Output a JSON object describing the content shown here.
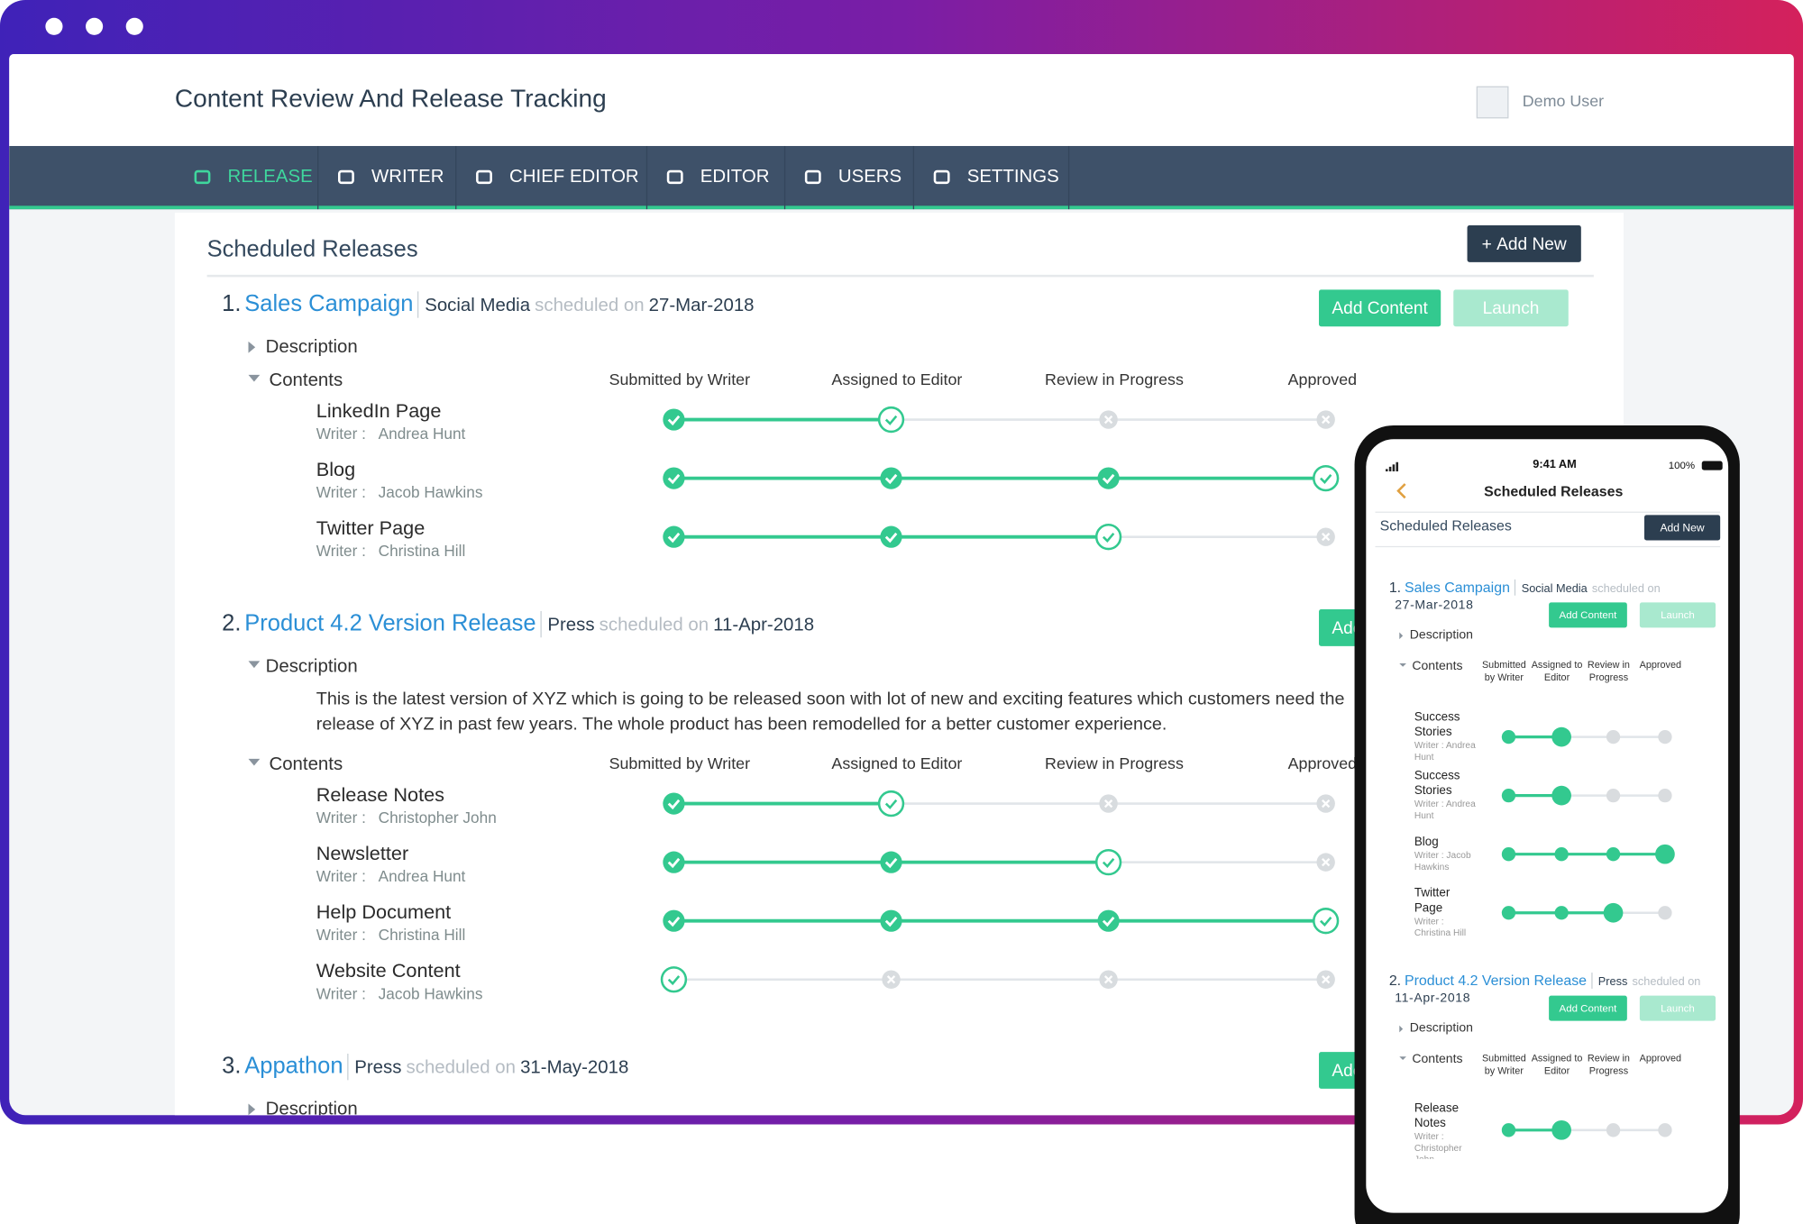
{
  "window": {
    "title": "Content Review And Release Tracking",
    "user": "Demo User"
  },
  "nav": [
    {
      "label": "RELEASE",
      "active": true
    },
    {
      "label": "WRITER",
      "active": false
    },
    {
      "label": "CHIEF EDITOR",
      "active": false
    },
    {
      "label": "EDITOR",
      "active": false
    },
    {
      "label": "USERS",
      "active": false
    },
    {
      "label": "SETTINGS",
      "active": false
    }
  ],
  "page": {
    "title": "Scheduled Releases",
    "add_new": "Add New"
  },
  "labels": {
    "scheduled_on": "scheduled on",
    "add_content": "Add Content",
    "launch": "Launch",
    "description": "Description",
    "contents": "Contents",
    "writer": "Writer :"
  },
  "stages": [
    "Submitted by Writer",
    "Assigned to Editor",
    "Review in Progress",
    "Approved"
  ],
  "releases": [
    {
      "number": "1.",
      "name": "Sales Campaign",
      "channel": "Social Media",
      "date": "27-Mar-2018",
      "description_open": false,
      "items": [
        {
          "name": "LinkedIn Page",
          "writer": "Andrea Hunt",
          "status": [
            "done",
            "current",
            "pending",
            "pending"
          ]
        },
        {
          "name": "Blog",
          "writer": "Jacob Hawkins",
          "status": [
            "done",
            "done",
            "done",
            "current"
          ]
        },
        {
          "name": "Twitter Page",
          "writer": "Christina Hill",
          "status": [
            "done",
            "done",
            "current",
            "pending"
          ]
        }
      ]
    },
    {
      "number": "2.",
      "name": "Product 4.2 Version Release",
      "channel": "Press",
      "date": "11-Apr-2018",
      "description_open": true,
      "description": [
        "This is the latest version of XYZ which is going to be released soon with lot of new and exciting features which customers need the",
        "release of XYZ in past few years. The whole product has been remodelled for a better customer experience."
      ],
      "items": [
        {
          "name": "Release Notes",
          "writer": "Christopher John",
          "status": [
            "done",
            "current",
            "pending",
            "pending"
          ]
        },
        {
          "name": "Newsletter",
          "writer": "Andrea Hunt",
          "status": [
            "done",
            "done",
            "current",
            "pending"
          ]
        },
        {
          "name": "Help Document",
          "writer": "Christina Hill",
          "status": [
            "done",
            "done",
            "done",
            "current"
          ]
        },
        {
          "name": "Website Content",
          "writer": "Jacob Hawkins",
          "status": [
            "current",
            "pending",
            "pending",
            "pending"
          ]
        }
      ]
    },
    {
      "number": "3.",
      "name": "Appathon",
      "channel": "Press",
      "date": "31-May-2018",
      "description_open": false,
      "items": []
    }
  ],
  "mobile": {
    "time": "9:41 AM",
    "battery": "100%",
    "title": "Scheduled Releases",
    "releases": [
      {
        "number": "1.",
        "name": "Sales Campaign",
        "channel": "Social Media",
        "date": "27-Mar-2018",
        "description_open": false,
        "items": [
          {
            "name": "Success Stories",
            "writer": "Andrea Hunt",
            "status": [
              "done",
              "current",
              "pending",
              "pending"
            ]
          },
          {
            "name": "Success Stories",
            "writer": "Andrea Hunt",
            "status": [
              "done",
              "current",
              "pending",
              "pending"
            ]
          },
          {
            "name": "Blog",
            "writer": "Jacob Hawkins",
            "status": [
              "done",
              "done",
              "done",
              "current"
            ]
          },
          {
            "name": "Twitter Page",
            "writer": "Christina Hill",
            "status": [
              "done",
              "done",
              "current",
              "pending"
            ]
          }
        ]
      },
      {
        "number": "2.",
        "name": "Product 4.2 Version Release",
        "channel": "Press",
        "date": "11-Apr-2018",
        "description_open": false,
        "items": [
          {
            "name": "Release Notes",
            "writer": "Christopher John",
            "status": [
              "done",
              "current",
              "pending",
              "pending"
            ]
          }
        ]
      }
    ]
  }
}
